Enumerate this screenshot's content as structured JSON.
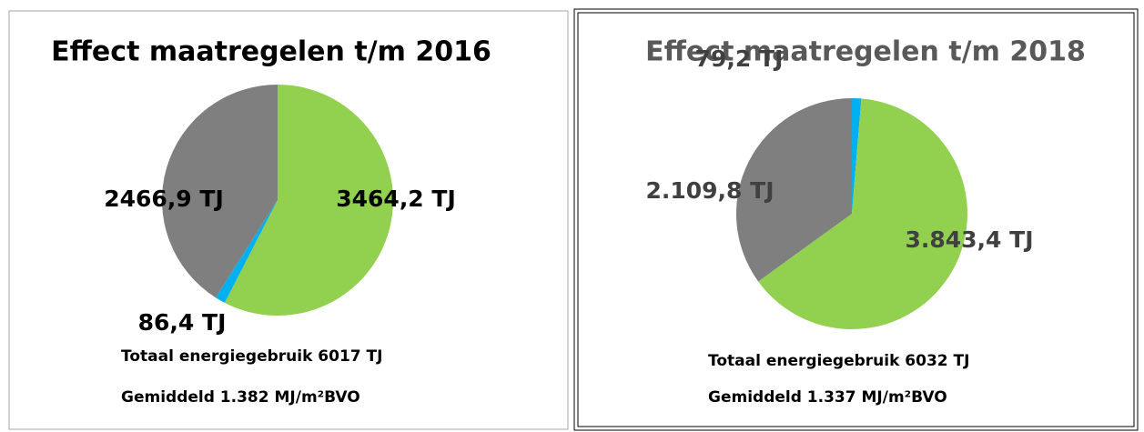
{
  "chart_data": [
    {
      "type": "pie",
      "title": "Effect maatregelen t/m 2016",
      "categories": [
        null,
        null,
        null
      ],
      "values": [
        3464.2,
        86.4,
        2466.9
      ],
      "value_labels": [
        "3464,2 TJ",
        "86,4 TJ",
        "2466,9 TJ"
      ],
      "colors": [
        "#92d050",
        "#00b0f0",
        "#7f7f7f"
      ],
      "annotations": [
        "Totaal energiegebruik 6017 TJ",
        "Gemiddeld 1.382 MJ/m²BVO"
      ]
    },
    {
      "type": "pie",
      "title": "Effect maatregelen t/m 2018",
      "categories": [
        null,
        null,
        null
      ],
      "values": [
        79.2,
        3843.4,
        2109.8
      ],
      "value_labels": [
        "79,2 TJ",
        "3.843,4 TJ",
        "2.109,8 TJ"
      ],
      "colors": [
        "#00b0f0",
        "#92d050",
        "#7f7f7f"
      ],
      "annotations": [
        "Totaal energiegebruik 6032 TJ",
        "Gemiddeld 1.337 MJ/m²BVO"
      ]
    }
  ]
}
